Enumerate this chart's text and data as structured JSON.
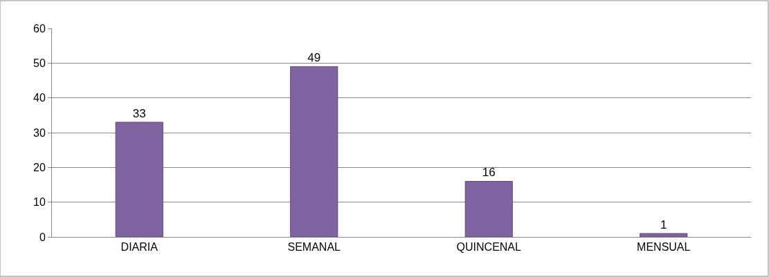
{
  "chart_data": {
    "type": "bar",
    "categories": [
      "DIARIA",
      "SEMANAL",
      "QUINCENAL",
      "MENSUAL"
    ],
    "values": [
      33,
      49,
      16,
      1
    ],
    "color": "#8064a2",
    "ylim": [
      0,
      60
    ],
    "yticks": [
      0,
      10,
      20,
      30,
      40,
      50,
      60
    ],
    "grid": "y",
    "data_labels": true,
    "legend": false
  }
}
